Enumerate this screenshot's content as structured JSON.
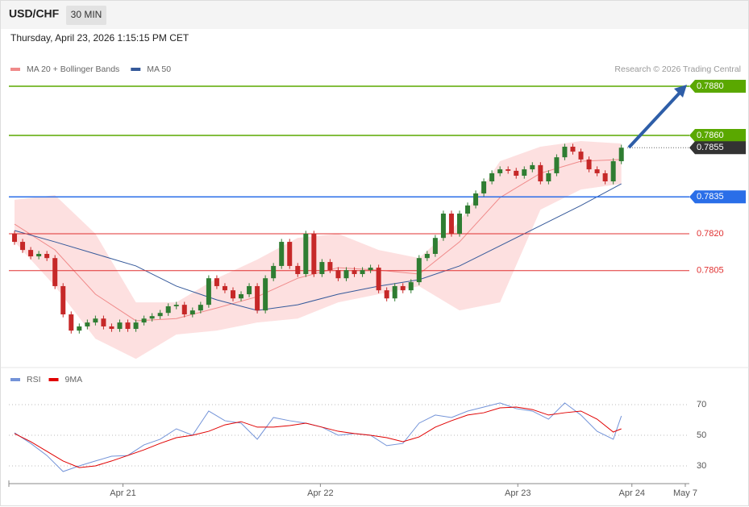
{
  "header": {
    "symbol": "USD/CHF",
    "timeframe": "30 MIN",
    "datetime": "Thursday, April 23, 2026 1:15:15 PM CET",
    "source": "Research © 2026 Trading Central"
  },
  "chart_data": [
    {
      "type": "candlestick",
      "xlim": [
        -0.7,
        83.4
      ],
      "ylim": [
        0.77659,
        0.78954
      ],
      "up_color": "#2f7d32",
      "down_color": "#c62828",
      "open": [
        0.782,
        0.78167,
        0.78134,
        0.78108,
        0.78118,
        0.78101,
        0.77987,
        0.77872,
        0.77806,
        0.77823,
        0.77839,
        0.77855,
        0.77823,
        0.77813,
        0.77839,
        0.77813,
        0.77839,
        0.77855,
        0.77865,
        0.77878,
        0.77905,
        0.77911,
        0.77872,
        0.77888,
        0.77911,
        0.78019,
        0.77987,
        0.7797,
        0.77937,
        0.77954,
        0.77987,
        0.77888,
        0.78019,
        0.78069,
        0.78167,
        0.78069,
        0.78036,
        0.782,
        0.78036,
        0.78085,
        0.78052,
        0.78019,
        0.78052,
        0.78036,
        0.78052,
        0.78062,
        0.7797,
        0.77937,
        0.77987,
        0.7797,
        0.78003,
        0.78101,
        0.78118,
        0.78183,
        0.78282,
        0.782,
        0.78282,
        0.78315,
        0.78364,
        0.78413,
        0.78446,
        0.78462,
        0.78456,
        0.78436,
        0.78462,
        0.78479,
        0.78413,
        0.78446,
        0.78511,
        0.78554,
        0.78534,
        0.78502,
        0.78462,
        0.78446,
        0.78413,
        0.78495
      ],
      "high": [
        0.78212,
        0.78179,
        0.78146,
        0.7813,
        0.7813,
        0.78113,
        0.77999,
        0.77884,
        0.77835,
        0.77851,
        0.77867,
        0.77867,
        0.77835,
        0.77851,
        0.77851,
        0.77851,
        0.77867,
        0.77877,
        0.7789,
        0.77917,
        0.77923,
        0.77923,
        0.779,
        0.77923,
        0.78031,
        0.78031,
        0.77999,
        0.77982,
        0.77966,
        0.77999,
        0.77999,
        0.78031,
        0.78081,
        0.78179,
        0.78179,
        0.78081,
        0.78212,
        0.78212,
        0.78097,
        0.78097,
        0.78064,
        0.78064,
        0.78064,
        0.78064,
        0.78074,
        0.78074,
        0.77982,
        0.77999,
        0.77999,
        0.78015,
        0.78113,
        0.7813,
        0.78195,
        0.78294,
        0.78294,
        0.78294,
        0.78327,
        0.78376,
        0.78425,
        0.78458,
        0.78474,
        0.78474,
        0.78468,
        0.78474,
        0.78491,
        0.78491,
        0.78458,
        0.78523,
        0.78566,
        0.78566,
        0.78546,
        0.78514,
        0.78474,
        0.78458,
        0.78507,
        0.78562
      ],
      "low": [
        0.78155,
        0.78122,
        0.78096,
        0.78096,
        0.78089,
        0.77975,
        0.7786,
        0.77794,
        0.77794,
        0.77811,
        0.77827,
        0.77811,
        0.77801,
        0.77801,
        0.77801,
        0.77801,
        0.77827,
        0.77843,
        0.77853,
        0.77866,
        0.77893,
        0.7786,
        0.7786,
        0.77876,
        0.77899,
        0.77975,
        0.77958,
        0.77925,
        0.77925,
        0.77942,
        0.77876,
        0.77876,
        0.78007,
        0.78057,
        0.78057,
        0.78024,
        0.78024,
        0.78024,
        0.78024,
        0.7804,
        0.78007,
        0.78007,
        0.78024,
        0.78024,
        0.7804,
        0.77958,
        0.77925,
        0.77925,
        0.77958,
        0.77958,
        0.77991,
        0.78089,
        0.78106,
        0.78171,
        0.78188,
        0.78188,
        0.7827,
        0.78303,
        0.78352,
        0.78401,
        0.78434,
        0.78444,
        0.78424,
        0.78424,
        0.7845,
        0.78401,
        0.78401,
        0.78434,
        0.78499,
        0.78522,
        0.7849,
        0.7845,
        0.78434,
        0.78401,
        0.78401,
        0.78483
      ],
      "close": [
        0.78167,
        0.78134,
        0.78108,
        0.78118,
        0.78101,
        0.77987,
        0.77872,
        0.77806,
        0.77823,
        0.77839,
        0.77855,
        0.77823,
        0.77813,
        0.77839,
        0.77813,
        0.77839,
        0.77855,
        0.77865,
        0.77878,
        0.77905,
        0.77911,
        0.77872,
        0.77888,
        0.77911,
        0.78019,
        0.77987,
        0.7797,
        0.77937,
        0.77954,
        0.77987,
        0.77888,
        0.78019,
        0.78069,
        0.78167,
        0.78069,
        0.78036,
        0.782,
        0.78036,
        0.78085,
        0.78052,
        0.78019,
        0.78052,
        0.78036,
        0.78052,
        0.78062,
        0.7797,
        0.77937,
        0.77987,
        0.7797,
        0.78003,
        0.78101,
        0.78118,
        0.78183,
        0.78282,
        0.782,
        0.78282,
        0.78315,
        0.78364,
        0.78413,
        0.78446,
        0.78462,
        0.78456,
        0.78436,
        0.78462,
        0.78479,
        0.78413,
        0.78446,
        0.78511,
        0.78554,
        0.78534,
        0.78502,
        0.78462,
        0.78446,
        0.78413,
        0.78495,
        0.7855
      ],
      "series": [
        {
          "name": "MA 20 + Bollinger Bands",
          "color": "#f08a8a",
          "band_color": "#fde0e0",
          "x": [
            0,
            5,
            10,
            15,
            20,
            25,
            30,
            35,
            40,
            45,
            50,
            55,
            60,
            65,
            70,
            75
          ],
          "values": [
            0.78239,
            0.78134,
            0.77954,
            0.77846,
            0.77855,
            0.77898,
            0.77944,
            0.78019,
            0.78062,
            0.78052,
            0.78036,
            0.78167,
            0.78347,
            0.78446,
            0.78495,
            0.78502
          ],
          "upper": [
            0.78338,
            0.78357,
            0.782,
            0.77921,
            0.77921,
            0.78019,
            0.78095,
            0.78183,
            0.782,
            0.78134,
            0.78101,
            0.78249,
            0.78495,
            0.78554,
            0.78577,
            0.78567
          ],
          "lower": [
            0.78167,
            0.77987,
            0.77773,
            0.77691,
            0.7779,
            0.77806,
            0.77839,
            0.77855,
            0.77921,
            0.77954,
            0.77987,
            0.77888,
            0.77921,
            0.78298,
            0.7838,
            0.78403
          ]
        },
        {
          "name": "MA 50",
          "color": "#35599a",
          "x": [
            0,
            5,
            10,
            15,
            20,
            25,
            30,
            35,
            40,
            45,
            50,
            55,
            60,
            65,
            70,
            75
          ],
          "values": [
            0.78213,
            0.78167,
            0.78118,
            0.78069,
            0.77987,
            0.77931,
            0.77888,
            0.77911,
            0.77954,
            0.77987,
            0.78013,
            0.78069,
            0.78151,
            0.78233,
            0.78315,
            0.78403
          ]
        }
      ],
      "levels": [
        {
          "value": 0.788,
          "label": "0.7880",
          "color": "#5aa800",
          "style": "box"
        },
        {
          "value": 0.786,
          "label": "0.7860",
          "color": "#5aa800",
          "style": "box"
        },
        {
          "value": 0.7855,
          "label": "0.7855",
          "color": "#333333",
          "style": "last"
        },
        {
          "value": 0.7835,
          "label": "0.7835",
          "color": "#2a6ee8",
          "style": "box"
        },
        {
          "value": 0.782,
          "label": "0.7820",
          "color": "#e03030",
          "style": "text"
        },
        {
          "value": 0.7805,
          "label": "0.7805",
          "color": "#e03030",
          "style": "text"
        }
      ]
    },
    {
      "type": "line",
      "xlim": [
        -0.7,
        83.4
      ],
      "ylim": [
        19.47,
        91.05
      ],
      "yticks": [
        30,
        50,
        70
      ],
      "grid": true,
      "xticks": [
        {
          "value": 13.4,
          "label": "Apr 21"
        },
        {
          "value": 37.8,
          "label": "Apr 22"
        },
        {
          "value": 62.2,
          "label": "Apr 23"
        },
        {
          "value": 76.3,
          "label": "Apr 24"
        },
        {
          "value": 82.9,
          "label": "May 7"
        }
      ],
      "x": [
        0,
        2,
        4,
        6,
        8,
        10,
        12,
        14,
        16,
        18,
        20,
        22,
        24,
        26,
        28,
        30,
        32,
        34,
        36,
        38,
        40,
        42,
        44,
        46,
        48,
        50,
        52,
        54,
        56,
        58,
        60,
        62,
        64,
        66,
        68,
        70,
        72,
        74,
        75
      ],
      "series": [
        {
          "name": "RSI",
          "color": "#7393d8",
          "values": [
            51.6,
            44.7,
            36.8,
            26.3,
            30.0,
            33.2,
            36.3,
            36.8,
            43.7,
            47.4,
            54.2,
            50.0,
            65.8,
            59.5,
            57.9,
            47.4,
            61.6,
            59.5,
            57.9,
            55.3,
            50.0,
            51.1,
            50.0,
            43.2,
            44.7,
            57.9,
            63.2,
            61.6,
            65.8,
            68.4,
            71.1,
            67.4,
            65.8,
            60.5,
            71.1,
            63.2,
            52.6,
            47.4,
            62.6
          ]
        },
        {
          "name": "9MA",
          "color": "#e00000",
          "values": [
            51.1,
            45.8,
            39.5,
            33.2,
            28.9,
            30.0,
            33.2,
            36.8,
            40.5,
            44.7,
            48.4,
            50.0,
            52.6,
            56.8,
            58.9,
            55.3,
            55.3,
            56.3,
            57.9,
            55.3,
            52.6,
            51.1,
            50.0,
            48.4,
            45.8,
            48.9,
            55.3,
            59.5,
            63.2,
            64.7,
            67.9,
            68.4,
            66.8,
            63.2,
            64.7,
            65.8,
            60.5,
            52.1,
            54.2
          ]
        }
      ]
    }
  ]
}
